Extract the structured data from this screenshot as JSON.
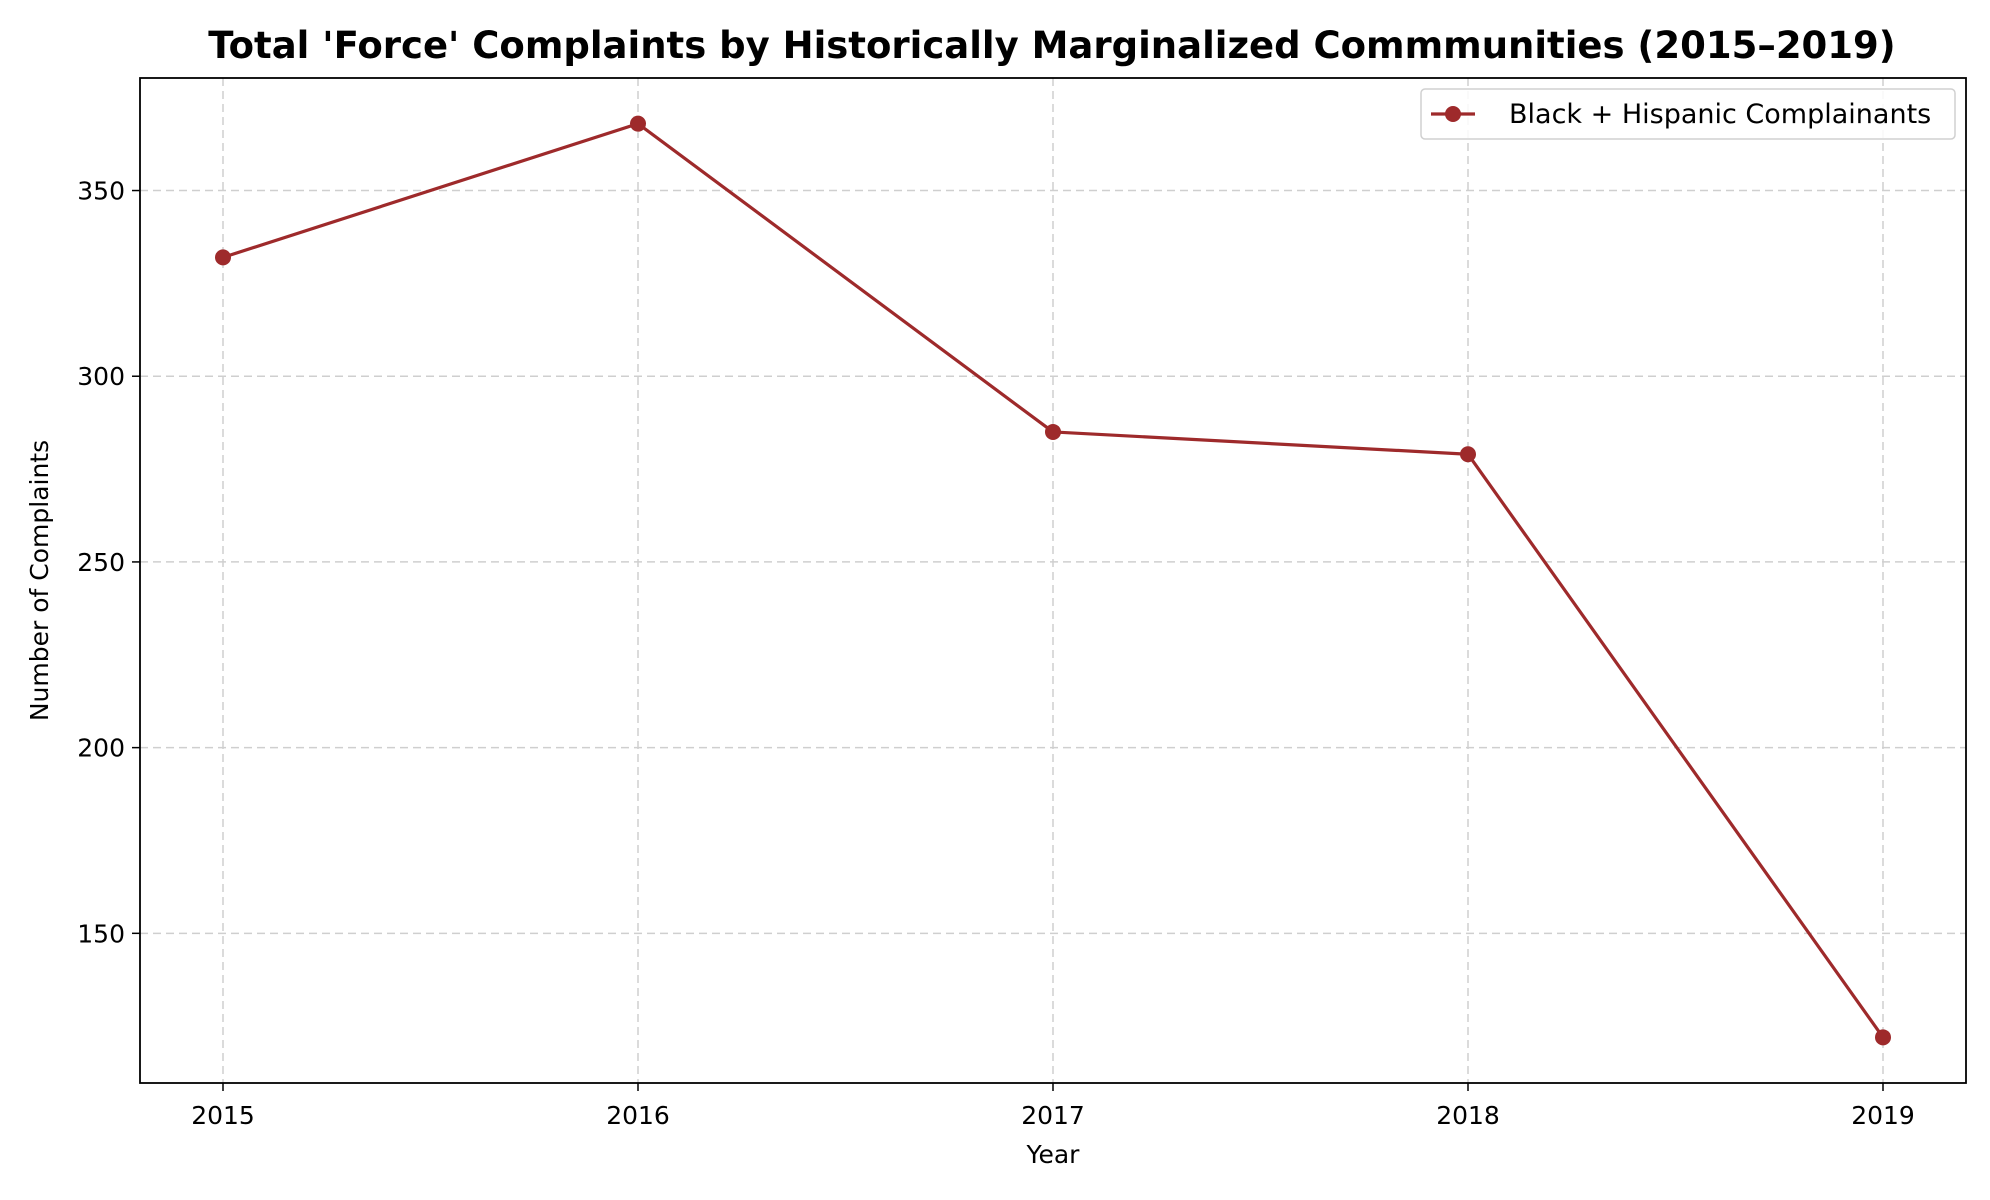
{
  "chart_data": {
    "type": "line",
    "title": "Total 'Force' Complaints by Historically Marginalized Commmunities (2015–2019)",
    "xlabel": "Year",
    "ylabel": "Number of Complaints",
    "x": [
      2015,
      2016,
      2017,
      2018,
      2019
    ],
    "x_tick_labels": [
      "2015",
      "2016",
      "2017",
      "2018",
      "2019"
    ],
    "y_ticks": [
      150,
      200,
      250,
      300,
      350
    ],
    "y_tick_labels": [
      "150",
      "200",
      "250",
      "300",
      "350"
    ],
    "xlim": [
      2014.8,
      2019.2
    ],
    "ylim": [
      109.7,
      380.3
    ],
    "grid": true,
    "legend_position": "upper right",
    "series": [
      {
        "name": "Black + Hispanic Complainants",
        "color": "#9e2a2b",
        "marker": "circle",
        "values": [
          332,
          368,
          285,
          279,
          122
        ]
      }
    ]
  }
}
